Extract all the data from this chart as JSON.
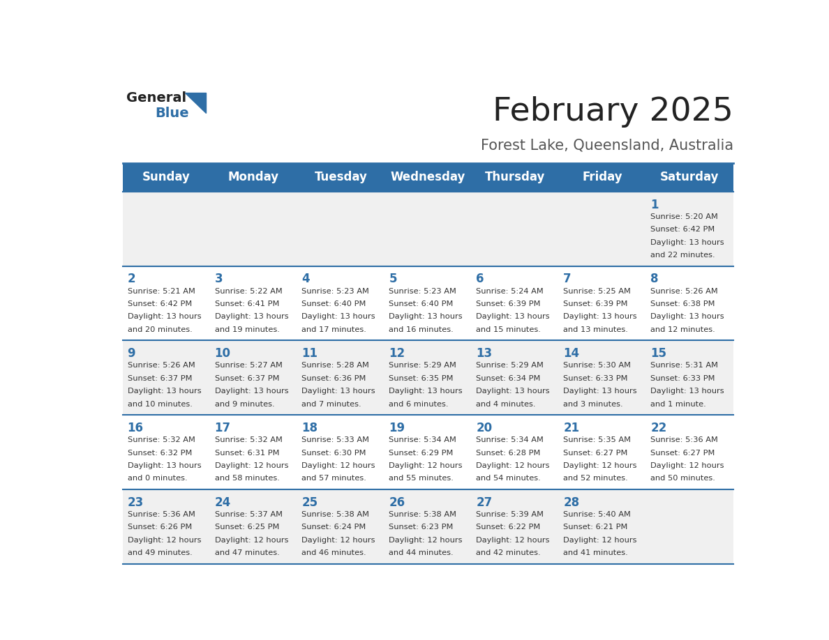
{
  "title": "February 2025",
  "subtitle": "Forest Lake, Queensland, Australia",
  "days_of_week": [
    "Sunday",
    "Monday",
    "Tuesday",
    "Wednesday",
    "Thursday",
    "Friday",
    "Saturday"
  ],
  "header_bg": "#2E6EA6",
  "header_text": "#FFFFFF",
  "row_bg_odd": "#F0F0F0",
  "row_bg_even": "#FFFFFF",
  "separator_color": "#2E6EA6",
  "day_number_color": "#2E6EA6",
  "cell_text_color": "#333333",
  "title_color": "#222222",
  "subtitle_color": "#555555",
  "logo_general_color": "#222222",
  "logo_blue_color": "#2E6EA6",
  "logo_triangle_color": "#2E6EA6",
  "calendar_data": [
    [
      null,
      null,
      null,
      null,
      null,
      null,
      {
        "day": 1,
        "sunrise": "5:20 AM",
        "sunset": "6:42 PM",
        "daylight": "13 hours and 22 minutes."
      }
    ],
    [
      {
        "day": 2,
        "sunrise": "5:21 AM",
        "sunset": "6:42 PM",
        "daylight": "13 hours and 20 minutes."
      },
      {
        "day": 3,
        "sunrise": "5:22 AM",
        "sunset": "6:41 PM",
        "daylight": "13 hours and 19 minutes."
      },
      {
        "day": 4,
        "sunrise": "5:23 AM",
        "sunset": "6:40 PM",
        "daylight": "13 hours and 17 minutes."
      },
      {
        "day": 5,
        "sunrise": "5:23 AM",
        "sunset": "6:40 PM",
        "daylight": "13 hours and 16 minutes."
      },
      {
        "day": 6,
        "sunrise": "5:24 AM",
        "sunset": "6:39 PM",
        "daylight": "13 hours and 15 minutes."
      },
      {
        "day": 7,
        "sunrise": "5:25 AM",
        "sunset": "6:39 PM",
        "daylight": "13 hours and 13 minutes."
      },
      {
        "day": 8,
        "sunrise": "5:26 AM",
        "sunset": "6:38 PM",
        "daylight": "13 hours and 12 minutes."
      }
    ],
    [
      {
        "day": 9,
        "sunrise": "5:26 AM",
        "sunset": "6:37 PM",
        "daylight": "13 hours and 10 minutes."
      },
      {
        "day": 10,
        "sunrise": "5:27 AM",
        "sunset": "6:37 PM",
        "daylight": "13 hours and 9 minutes."
      },
      {
        "day": 11,
        "sunrise": "5:28 AM",
        "sunset": "6:36 PM",
        "daylight": "13 hours and 7 minutes."
      },
      {
        "day": 12,
        "sunrise": "5:29 AM",
        "sunset": "6:35 PM",
        "daylight": "13 hours and 6 minutes."
      },
      {
        "day": 13,
        "sunrise": "5:29 AM",
        "sunset": "6:34 PM",
        "daylight": "13 hours and 4 minutes."
      },
      {
        "day": 14,
        "sunrise": "5:30 AM",
        "sunset": "6:33 PM",
        "daylight": "13 hours and 3 minutes."
      },
      {
        "day": 15,
        "sunrise": "5:31 AM",
        "sunset": "6:33 PM",
        "daylight": "13 hours and 1 minute."
      }
    ],
    [
      {
        "day": 16,
        "sunrise": "5:32 AM",
        "sunset": "6:32 PM",
        "daylight": "13 hours and 0 minutes."
      },
      {
        "day": 17,
        "sunrise": "5:32 AM",
        "sunset": "6:31 PM",
        "daylight": "12 hours and 58 minutes."
      },
      {
        "day": 18,
        "sunrise": "5:33 AM",
        "sunset": "6:30 PM",
        "daylight": "12 hours and 57 minutes."
      },
      {
        "day": 19,
        "sunrise": "5:34 AM",
        "sunset": "6:29 PM",
        "daylight": "12 hours and 55 minutes."
      },
      {
        "day": 20,
        "sunrise": "5:34 AM",
        "sunset": "6:28 PM",
        "daylight": "12 hours and 54 minutes."
      },
      {
        "day": 21,
        "sunrise": "5:35 AM",
        "sunset": "6:27 PM",
        "daylight": "12 hours and 52 minutes."
      },
      {
        "day": 22,
        "sunrise": "5:36 AM",
        "sunset": "6:27 PM",
        "daylight": "12 hours and 50 minutes."
      }
    ],
    [
      {
        "day": 23,
        "sunrise": "5:36 AM",
        "sunset": "6:26 PM",
        "daylight": "12 hours and 49 minutes."
      },
      {
        "day": 24,
        "sunrise": "5:37 AM",
        "sunset": "6:25 PM",
        "daylight": "12 hours and 47 minutes."
      },
      {
        "day": 25,
        "sunrise": "5:38 AM",
        "sunset": "6:24 PM",
        "daylight": "12 hours and 46 minutes."
      },
      {
        "day": 26,
        "sunrise": "5:38 AM",
        "sunset": "6:23 PM",
        "daylight": "12 hours and 44 minutes."
      },
      {
        "day": 27,
        "sunrise": "5:39 AM",
        "sunset": "6:22 PM",
        "daylight": "12 hours and 42 minutes."
      },
      {
        "day": 28,
        "sunrise": "5:40 AM",
        "sunset": "6:21 PM",
        "daylight": "12 hours and 41 minutes."
      },
      null
    ]
  ]
}
